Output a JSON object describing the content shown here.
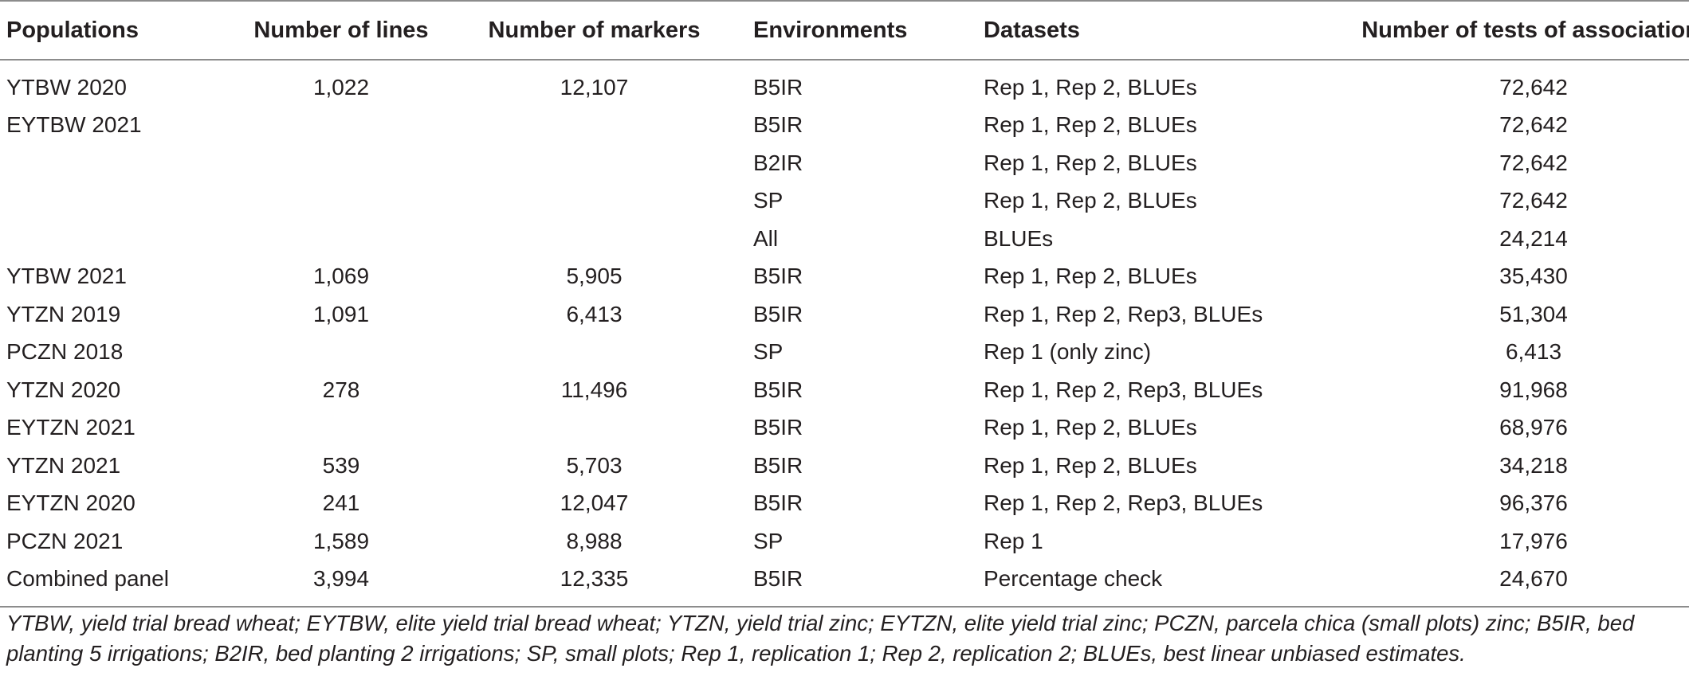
{
  "table": {
    "headers": {
      "populations": "Populations",
      "lines": "Number of lines",
      "markers": "Number of markers",
      "environments": "Environments",
      "datasets": "Datasets",
      "tests": "Number of tests of association"
    },
    "rows": [
      {
        "population": "YTBW 2020",
        "lines": "1,022",
        "markers": "12,107",
        "environment": "B5IR",
        "datasets": "Rep 1, Rep 2, BLUEs",
        "tests": "72,642"
      },
      {
        "population": "EYTBW 2021",
        "lines": "",
        "markers": "",
        "environment": "B5IR",
        "datasets": "Rep 1, Rep 2, BLUEs",
        "tests": "72,642"
      },
      {
        "population": "",
        "lines": "",
        "markers": "",
        "environment": "B2IR",
        "datasets": "Rep 1, Rep 2, BLUEs",
        "tests": "72,642"
      },
      {
        "population": "",
        "lines": "",
        "markers": "",
        "environment": "SP",
        "datasets": "Rep 1, Rep 2, BLUEs",
        "tests": "72,642"
      },
      {
        "population": "",
        "lines": "",
        "markers": "",
        "environment": "All",
        "datasets": "BLUEs",
        "tests": "24,214"
      },
      {
        "population": "YTBW 2021",
        "lines": "1,069",
        "markers": "5,905",
        "environment": "B5IR",
        "datasets": "Rep 1, Rep 2, BLUEs",
        "tests": "35,430"
      },
      {
        "population": "YTZN 2019",
        "lines": "1,091",
        "markers": "6,413",
        "environment": "B5IR",
        "datasets": "Rep 1, Rep 2, Rep3, BLUEs",
        "tests": "51,304"
      },
      {
        "population": "PCZN 2018",
        "lines": "",
        "markers": "",
        "environment": "SP",
        "datasets": "Rep 1 (only zinc)",
        "tests": "6,413"
      },
      {
        "population": "YTZN 2020",
        "lines": "278",
        "markers": "11,496",
        "environment": "B5IR",
        "datasets": "Rep 1, Rep 2, Rep3, BLUEs",
        "tests": "91,968"
      },
      {
        "population": "EYTZN 2021",
        "lines": "",
        "markers": "",
        "environment": "B5IR",
        "datasets": "Rep 1, Rep 2, BLUEs",
        "tests": "68,976"
      },
      {
        "population": "YTZN 2021",
        "lines": "539",
        "markers": "5,703",
        "environment": "B5IR",
        "datasets": "Rep 1, Rep 2, BLUEs",
        "tests": "34,218"
      },
      {
        "population": "EYTZN 2020",
        "lines": "241",
        "markers": "12,047",
        "environment": "B5IR",
        "datasets": "Rep 1, Rep 2, Rep3, BLUEs",
        "tests": "96,376"
      },
      {
        "population": "PCZN 2021",
        "lines": "1,589",
        "markers": "8,988",
        "environment": "SP",
        "datasets": "Rep 1",
        "tests": "17,976"
      },
      {
        "population": "Combined panel",
        "lines": "3,994",
        "markers": "12,335",
        "environment": "B5IR",
        "datasets": "Percentage check",
        "tests": "24,670"
      }
    ]
  },
  "footnote": "YTBW, yield trial bread wheat; EYTBW, elite yield trial bread wheat; YTZN, yield trial zinc; EYTZN, elite yield trial zinc; PCZN, parcela chica (small plots) zinc; B5IR, bed planting 5 irrigations; B2IR, bed planting 2 irrigations; SP, small plots; Rep 1, replication 1; Rep 2, replication 2; BLUEs, best linear unbiased estimates."
}
